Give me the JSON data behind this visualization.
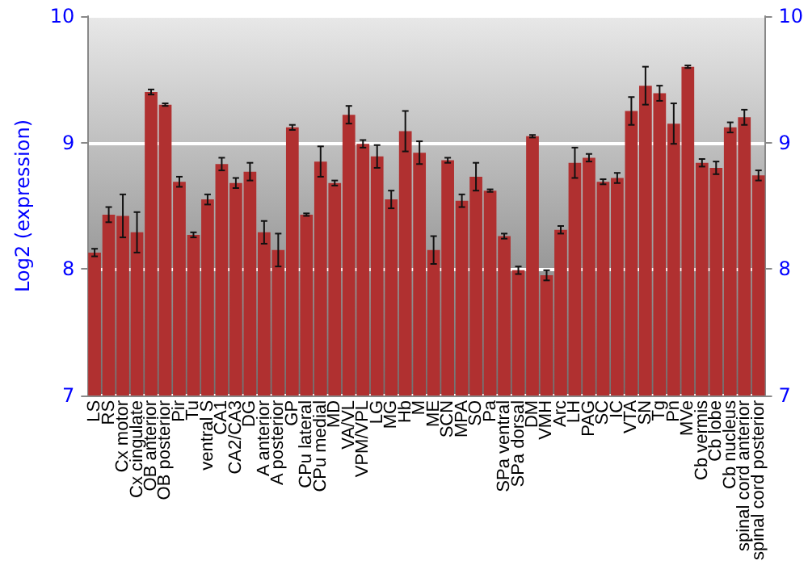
{
  "chart_data": {
    "type": "bar",
    "ylabel": "Log2 (expression)",
    "categories": [
      "LS",
      "RS",
      "Cx motor",
      "Cx cingulate",
      "OB anterior",
      "OB posterior",
      "Pir",
      "Tu",
      "ventral S",
      "CA1",
      "CA2/CA3",
      "DG",
      "A anterior",
      "A posterior",
      "GP",
      "CPu lateral",
      "CPu medial",
      "MD",
      "VA/VL",
      "VPM/VPL",
      "LG",
      "MG",
      "Hb",
      "M",
      "ME",
      "SCN",
      "MPA",
      "SO",
      "Pa",
      "SPa ventral",
      "SPa dorsal",
      "DM",
      "VMH",
      "Arc",
      "LH",
      "PAG",
      "SC",
      "IC",
      "VTA",
      "SN",
      "Tg",
      "Pn",
      "MVe",
      "Cb vermis",
      "Cb lobe",
      "Cb nucleus",
      "spinal cord anterior",
      "spinal cord posterior"
    ],
    "values": [
      8.13,
      8.43,
      8.42,
      8.29,
      9.4,
      9.3,
      8.69,
      8.27,
      8.55,
      8.83,
      8.68,
      8.77,
      8.29,
      8.15,
      9.12,
      8.43,
      8.85,
      8.68,
      9.22,
      8.99,
      8.89,
      8.55,
      9.09,
      8.92,
      8.15,
      8.86,
      8.54,
      8.73,
      8.62,
      8.26,
      7.99,
      9.05,
      7.95,
      8.31,
      8.84,
      8.88,
      8.69,
      8.72,
      9.25,
      9.45,
      9.39,
      9.15,
      9.6,
      8.84,
      8.8,
      9.12,
      9.2,
      8.74
    ],
    "errors": [
      0.03,
      0.06,
      0.17,
      0.16,
      0.02,
      0.01,
      0.04,
      0.02,
      0.04,
      0.05,
      0.04,
      0.07,
      0.09,
      0.13,
      0.02,
      0.01,
      0.12,
      0.02,
      0.07,
      0.03,
      0.09,
      0.07,
      0.16,
      0.09,
      0.11,
      0.02,
      0.05,
      0.11,
      0.01,
      0.02,
      0.03,
      0.01,
      0.04,
      0.03,
      0.12,
      0.03,
      0.02,
      0.04,
      0.11,
      0.15,
      0.06,
      0.16,
      0.01,
      0.03,
      0.05,
      0.04,
      0.06,
      0.04
    ],
    "color": "#b03030",
    "ylim": [
      7,
      10
    ],
    "yticks": [
      7,
      8,
      9,
      10
    ],
    "y2lim": [
      7,
      10
    ],
    "y2ticks": [
      7,
      8,
      9,
      10
    ],
    "grid": "y"
  }
}
